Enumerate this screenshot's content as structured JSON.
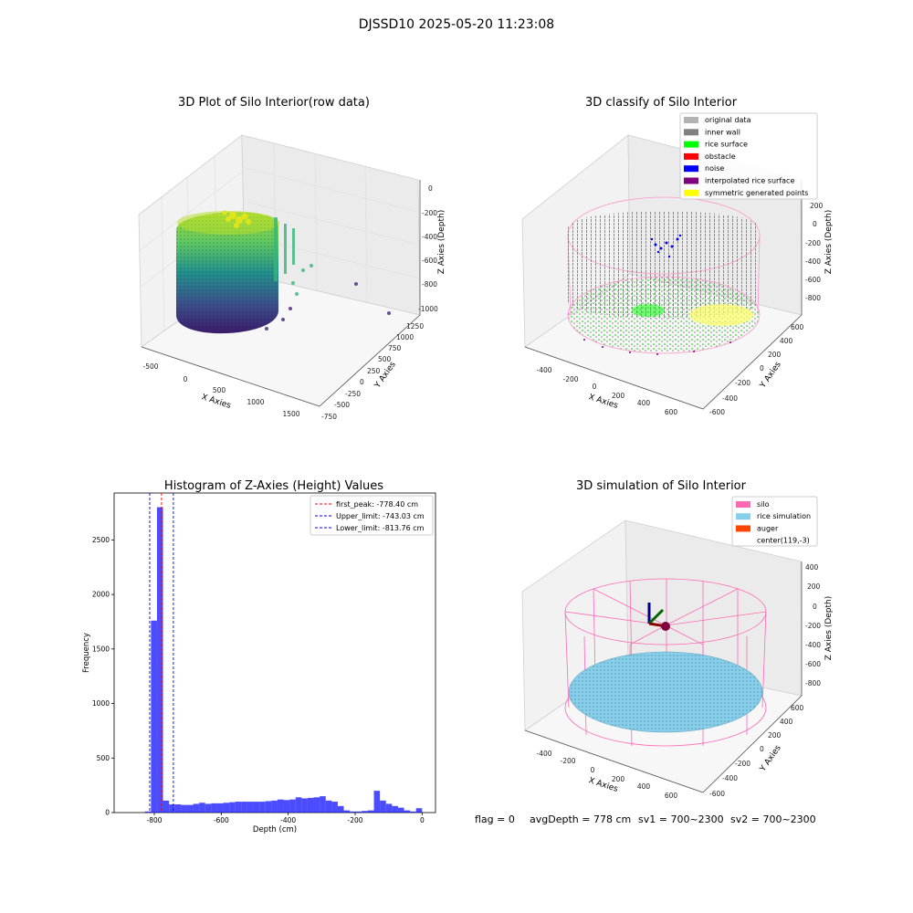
{
  "figure": {
    "suptitle": "DJSSD10 2025-05-20 11:23:08",
    "footer": {
      "flag": "flag = 0",
      "avg_depth": "avgDepth = 778 cm",
      "sv1": "sv1 = 700~2300",
      "sv2": "sv2 = 700~2300"
    }
  },
  "panels": {
    "raw": {
      "title": "3D Plot of Silo Interior(row data)",
      "xlabel": "X Axies",
      "ylabel": "Y Axies",
      "zlabel": "Z Axies (Depth)",
      "xticks": [
        "-500",
        "0",
        "500",
        "1000",
        "1500"
      ],
      "yticks": [
        "-750",
        "-500",
        "-250",
        "0",
        "250",
        "500",
        "750",
        "1000",
        "1250"
      ],
      "zticks": [
        "0",
        "-200",
        "-400",
        "-600",
        "-800",
        "-1000"
      ]
    },
    "classify": {
      "title": "3D classify of Silo Interior",
      "xlabel": "X Axies",
      "ylabel": "Y Axies",
      "zlabel": "Z Axies (Depth)",
      "xticks": [
        "-400",
        "-200",
        "0",
        "200",
        "400",
        "600"
      ],
      "yticks": [
        "-600",
        "-400",
        "-200",
        "0",
        "200",
        "400",
        "600"
      ],
      "zticks": [
        "200",
        "0",
        "-200",
        "-400",
        "-600",
        "-800"
      ],
      "legend": [
        {
          "label": "original data",
          "color": "#b3b3b3"
        },
        {
          "label": "inner wall",
          "color": "#808080"
        },
        {
          "label": "rice surface",
          "color": "#00ff00"
        },
        {
          "label": "obstacle",
          "color": "#ff0000"
        },
        {
          "label": "noise",
          "color": "#0000ff"
        },
        {
          "label": "interpolated rice surface",
          "color": "#800080"
        },
        {
          "label": "symmetric generated points",
          "color": "#ffff00"
        }
      ]
    },
    "simulation": {
      "title": "3D simulation of Silo Interior",
      "xlabel": "X Axies",
      "ylabel": "Y Axies",
      "zlabel": "Z Axies (Depth)",
      "xticks": [
        "-400",
        "-200",
        "0",
        "200",
        "400",
        "600"
      ],
      "yticks": [
        "-600",
        "-400",
        "-200",
        "0",
        "200",
        "400",
        "600"
      ],
      "zticks": [
        "400",
        "200",
        "0",
        "-200",
        "-400",
        "-600",
        "-800"
      ],
      "legend": [
        {
          "label": "silo",
          "color": "#ff69b4"
        },
        {
          "label": "rice simulation",
          "color": "#87ceeb"
        },
        {
          "label": "auger",
          "color": "#ff4500"
        },
        {
          "label": "center(119,-3)",
          "color": "#ffffff"
        }
      ]
    }
  },
  "chart_data": {
    "type": "bar",
    "title": "Histogram of Z-Axies (Height) Values",
    "xlabel": "Depth (cm)",
    "ylabel": "Frequency",
    "xlim": [
      -920,
      40
    ],
    "ylim": [
      0,
      2930
    ],
    "xticks": [
      -800,
      -600,
      -400,
      -200,
      0
    ],
    "yticks": [
      0,
      500,
      1000,
      1500,
      2000,
      2500
    ],
    "bar_color": "#0000ff",
    "bar_opacity": 0.7,
    "bins": [
      {
        "x0": -828,
        "x1": -810,
        "count": 10
      },
      {
        "x0": -810,
        "x1": -792,
        "count": 1760
      },
      {
        "x0": -792,
        "x1": -774,
        "count": 2800
      },
      {
        "x0": -774,
        "x1": -756,
        "count": 110
      },
      {
        "x0": -756,
        "x1": -738,
        "count": 75
      },
      {
        "x0": -738,
        "x1": -720,
        "count": 75
      },
      {
        "x0": -720,
        "x1": -702,
        "count": 70
      },
      {
        "x0": -702,
        "x1": -684,
        "count": 70
      },
      {
        "x0": -684,
        "x1": -666,
        "count": 80
      },
      {
        "x0": -666,
        "x1": -648,
        "count": 90
      },
      {
        "x0": -648,
        "x1": -630,
        "count": 80
      },
      {
        "x0": -630,
        "x1": -612,
        "count": 85
      },
      {
        "x0": -612,
        "x1": -594,
        "count": 85
      },
      {
        "x0": -594,
        "x1": -576,
        "count": 90
      },
      {
        "x0": -576,
        "x1": -558,
        "count": 95
      },
      {
        "x0": -558,
        "x1": -540,
        "count": 100
      },
      {
        "x0": -540,
        "x1": -522,
        "count": 100
      },
      {
        "x0": -522,
        "x1": -504,
        "count": 100
      },
      {
        "x0": -504,
        "x1": -486,
        "count": 100
      },
      {
        "x0": -486,
        "x1": -468,
        "count": 100
      },
      {
        "x0": -468,
        "x1": -450,
        "count": 105
      },
      {
        "x0": -450,
        "x1": -432,
        "count": 110
      },
      {
        "x0": -432,
        "x1": -414,
        "count": 120
      },
      {
        "x0": -414,
        "x1": -396,
        "count": 115
      },
      {
        "x0": -396,
        "x1": -378,
        "count": 120
      },
      {
        "x0": -378,
        "x1": -360,
        "count": 140
      },
      {
        "x0": -360,
        "x1": -342,
        "count": 130
      },
      {
        "x0": -342,
        "x1": -324,
        "count": 135
      },
      {
        "x0": -324,
        "x1": -306,
        "count": 140
      },
      {
        "x0": -306,
        "x1": -288,
        "count": 150
      },
      {
        "x0": -288,
        "x1": -270,
        "count": 110
      },
      {
        "x0": -270,
        "x1": -252,
        "count": 100
      },
      {
        "x0": -252,
        "x1": -234,
        "count": 60
      },
      {
        "x0": -234,
        "x1": -216,
        "count": 20
      },
      {
        "x0": -216,
        "x1": -198,
        "count": 10
      },
      {
        "x0": -198,
        "x1": -180,
        "count": 10
      },
      {
        "x0": -180,
        "x1": -162,
        "count": 15
      },
      {
        "x0": -162,
        "x1": -144,
        "count": 20
      },
      {
        "x0": -144,
        "x1": -126,
        "count": 200
      },
      {
        "x0": -126,
        "x1": -108,
        "count": 110
      },
      {
        "x0": -108,
        "x1": -90,
        "count": 80
      },
      {
        "x0": -90,
        "x1": -72,
        "count": 60
      },
      {
        "x0": -72,
        "x1": -54,
        "count": 45
      },
      {
        "x0": -54,
        "x1": -36,
        "count": 20
      },
      {
        "x0": -36,
        "x1": -18,
        "count": 10
      },
      {
        "x0": -18,
        "x1": 0,
        "count": 40
      }
    ],
    "lines": [
      {
        "label": "first_peak: -778.40 cm",
        "x": -778.4,
        "color": "#ff0000"
      },
      {
        "label": "Upper_limit: -743.03 cm",
        "x": -743.03,
        "color": "#0000ff"
      },
      {
        "label": "Lower_limit: -813.76 cm",
        "x": -813.76,
        "color": "#0000ff"
      }
    ],
    "legend_position": "upper right"
  }
}
